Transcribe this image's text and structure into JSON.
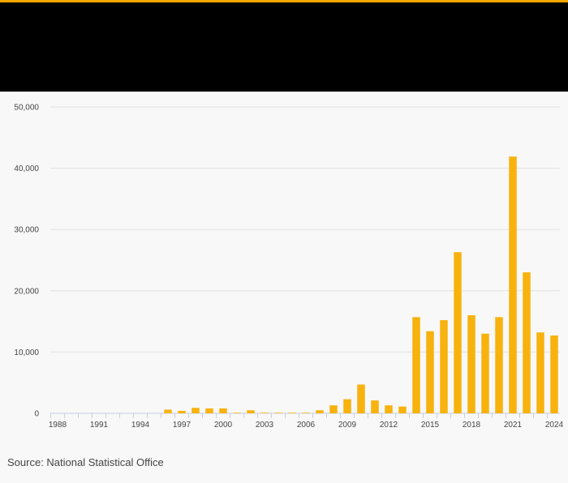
{
  "colors": {
    "accent": "#f5a800",
    "bar": "#f7b20d",
    "header_bg": "#000000",
    "grid": "#e2e2e2",
    "axis": "#c9cde0"
  },
  "chart_data": {
    "type": "bar",
    "title": "",
    "xlabel": "",
    "ylabel": "",
    "ylim": [
      0,
      50000
    ],
    "y_ticks": [
      "50,000",
      "40,000",
      "30,000",
      "20,000",
      "10,000",
      "0"
    ],
    "x_ticks": [
      "1988",
      "1991",
      "1994",
      "1997",
      "2000",
      "2003",
      "2006",
      "2009",
      "2012",
      "2015",
      "2018",
      "2021",
      "2024"
    ],
    "categories": [
      "1988",
      "1989",
      "1990",
      "1991",
      "1992",
      "1993",
      "1994",
      "1995",
      "1996",
      "1997",
      "1998",
      "1999",
      "2000",
      "2001",
      "2002",
      "2003",
      "2004",
      "2005",
      "2006",
      "2007",
      "2008",
      "2009",
      "2010",
      "2011",
      "2012",
      "2013",
      "2014",
      "2015",
      "2016",
      "2017",
      "2018",
      "2019",
      "2020",
      "2021",
      "2022",
      "2023",
      "2024"
    ],
    "values": [
      0,
      0,
      0,
      0,
      0,
      0,
      0,
      0,
      600,
      400,
      900,
      800,
      800,
      100,
      500,
      100,
      100,
      100,
      100,
      500,
      1300,
      2300,
      4700,
      2100,
      1300,
      1100,
      15700,
      13400,
      15200,
      26300,
      16000,
      13000,
      15700,
      41900,
      23000,
      13200,
      12700
    ],
    "grid": true,
    "legend": "none"
  },
  "source": "Source: National Statistical Office"
}
